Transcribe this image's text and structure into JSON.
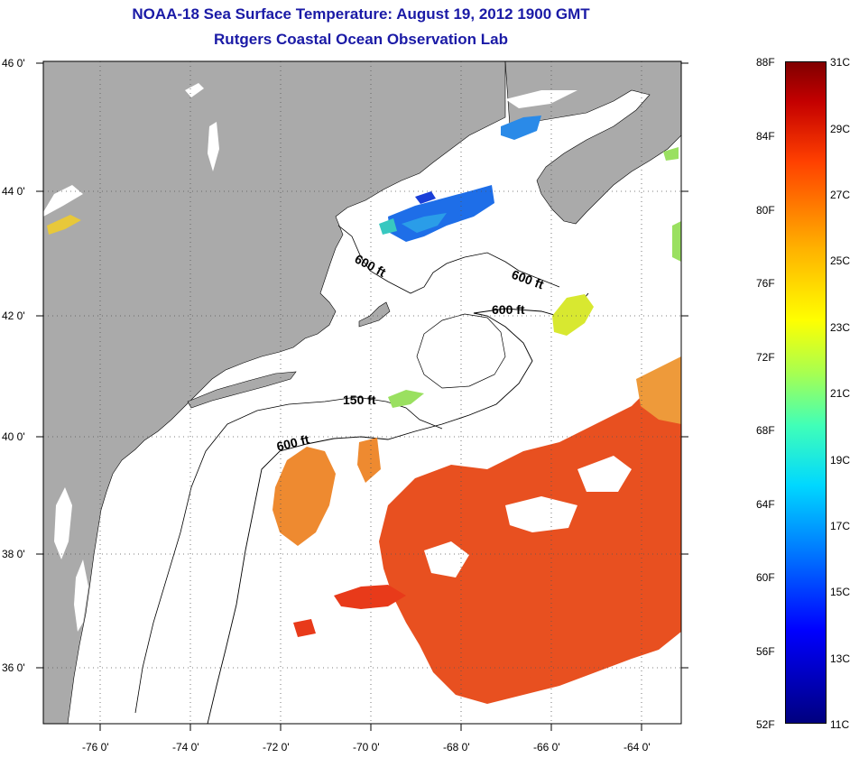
{
  "title": {
    "line1": "NOAA-18 Sea Surface Temperature:  August 19, 2012 1900 GMT",
    "line2": "Rutgers Coastal Ocean Observation Lab"
  },
  "map": {
    "lon_range": [
      -77.0,
      -63.0
    ],
    "lat_range": [
      35.0,
      46.0
    ],
    "lat_labels": [
      "46 0'",
      "44 0'",
      "42 0'",
      "40 0'",
      "38 0'",
      "36 0'"
    ],
    "lon_labels": [
      "-76 0'",
      "-74 0'",
      "-72 0'",
      "-70 0'",
      "-68 0'",
      "-66 0'",
      "-64 0'"
    ],
    "depth_labels": [
      "600 ft",
      "600 ft",
      "600 ft",
      "150 ft",
      "600 ft"
    ],
    "colors": {
      "land": "#aaaaaa",
      "ocean": "#ffffff",
      "warm_water": "#e8401a",
      "cool_water": "#1e6ee8"
    }
  },
  "colorbar": {
    "fahrenheit_labels": [
      "88F",
      "84F",
      "80F",
      "76F",
      "72F",
      "68F",
      "64F",
      "60F",
      "56F",
      "52F"
    ],
    "celsius_labels": [
      "31C",
      "29C",
      "27C",
      "25C",
      "23C",
      "21C",
      "19C",
      "17C",
      "15C",
      "13C",
      "11C"
    ],
    "range_c": [
      11,
      31
    ],
    "range_f": [
      52,
      88
    ]
  }
}
